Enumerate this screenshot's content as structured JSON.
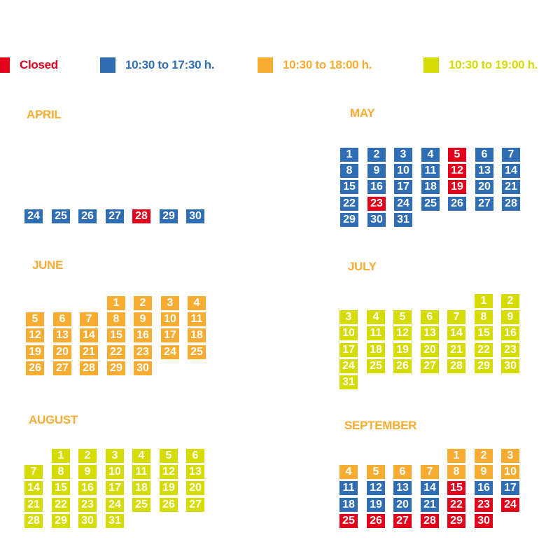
{
  "colors": {
    "closed": "#e3001b",
    "blue": "#2f6db5",
    "orange": "#f9ac32",
    "lime": "#d6dc00"
  },
  "legend": [
    {
      "key": "closed",
      "label": "Closed"
    },
    {
      "key": "blue",
      "label": "10:30 to 17:30 h."
    },
    {
      "key": "orange",
      "label": "10:30 to 18:00 h."
    },
    {
      "key": "lime",
      "label": "10:30 to 19:00 h."
    }
  ],
  "months": [
    {
      "name": "APRIL",
      "start_weekday": 0,
      "days": [
        {
          "d": 24,
          "s": "blue"
        },
        {
          "d": 25,
          "s": "blue"
        },
        {
          "d": 26,
          "s": "blue"
        },
        {
          "d": 27,
          "s": "blue"
        },
        {
          "d": 28,
          "s": "closed"
        },
        {
          "d": 29,
          "s": "blue"
        },
        {
          "d": 30,
          "s": "blue"
        }
      ]
    },
    {
      "name": "MAY",
      "start_weekday": 0,
      "days": [
        {
          "d": 1,
          "s": "blue"
        },
        {
          "d": 2,
          "s": "blue"
        },
        {
          "d": 3,
          "s": "blue"
        },
        {
          "d": 4,
          "s": "blue"
        },
        {
          "d": 5,
          "s": "closed"
        },
        {
          "d": 6,
          "s": "blue"
        },
        {
          "d": 7,
          "s": "blue"
        },
        {
          "d": 8,
          "s": "blue"
        },
        {
          "d": 9,
          "s": "blue"
        },
        {
          "d": 10,
          "s": "blue"
        },
        {
          "d": 11,
          "s": "blue"
        },
        {
          "d": 12,
          "s": "closed"
        },
        {
          "d": 13,
          "s": "blue"
        },
        {
          "d": 14,
          "s": "blue"
        },
        {
          "d": 15,
          "s": "blue"
        },
        {
          "d": 16,
          "s": "blue"
        },
        {
          "d": 17,
          "s": "blue"
        },
        {
          "d": 18,
          "s": "blue"
        },
        {
          "d": 19,
          "s": "closed"
        },
        {
          "d": 20,
          "s": "blue"
        },
        {
          "d": 21,
          "s": "blue"
        },
        {
          "d": 22,
          "s": "blue"
        },
        {
          "d": 23,
          "s": "closed"
        },
        {
          "d": 24,
          "s": "blue"
        },
        {
          "d": 25,
          "s": "blue"
        },
        {
          "d": 26,
          "s": "blue"
        },
        {
          "d": 27,
          "s": "blue"
        },
        {
          "d": 28,
          "s": "blue"
        },
        {
          "d": 29,
          "s": "blue"
        },
        {
          "d": 30,
          "s": "blue"
        },
        {
          "d": 31,
          "s": "blue"
        }
      ]
    },
    {
      "name": "JUNE",
      "start_weekday": 3,
      "days": [
        {
          "d": 1,
          "s": "orange"
        },
        {
          "d": 2,
          "s": "orange"
        },
        {
          "d": 3,
          "s": "orange"
        },
        {
          "d": 4,
          "s": "orange"
        },
        {
          "d": 5,
          "s": "orange"
        },
        {
          "d": 6,
          "s": "orange"
        },
        {
          "d": 7,
          "s": "orange"
        },
        {
          "d": 8,
          "s": "orange"
        },
        {
          "d": 9,
          "s": "orange"
        },
        {
          "d": 10,
          "s": "orange"
        },
        {
          "d": 11,
          "s": "orange"
        },
        {
          "d": 12,
          "s": "orange"
        },
        {
          "d": 13,
          "s": "orange"
        },
        {
          "d": 14,
          "s": "orange"
        },
        {
          "d": 15,
          "s": "orange"
        },
        {
          "d": 16,
          "s": "orange"
        },
        {
          "d": 17,
          "s": "orange"
        },
        {
          "d": 18,
          "s": "orange"
        },
        {
          "d": 19,
          "s": "orange"
        },
        {
          "d": 20,
          "s": "orange"
        },
        {
          "d": 21,
          "s": "orange"
        },
        {
          "d": 22,
          "s": "orange"
        },
        {
          "d": 23,
          "s": "orange"
        },
        {
          "d": 24,
          "s": "orange"
        },
        {
          "d": 25,
          "s": "orange"
        },
        {
          "d": 26,
          "s": "orange"
        },
        {
          "d": 27,
          "s": "orange"
        },
        {
          "d": 28,
          "s": "orange"
        },
        {
          "d": 29,
          "s": "orange"
        },
        {
          "d": 30,
          "s": "orange"
        }
      ]
    },
    {
      "name": "JULY",
      "start_weekday": 5,
      "days": [
        {
          "d": 1,
          "s": "lime"
        },
        {
          "d": 2,
          "s": "lime"
        },
        {
          "d": 3,
          "s": "lime"
        },
        {
          "d": 4,
          "s": "lime"
        },
        {
          "d": 5,
          "s": "lime"
        },
        {
          "d": 6,
          "s": "lime"
        },
        {
          "d": 7,
          "s": "lime"
        },
        {
          "d": 8,
          "s": "lime"
        },
        {
          "d": 9,
          "s": "lime"
        },
        {
          "d": 10,
          "s": "lime"
        },
        {
          "d": 11,
          "s": "lime"
        },
        {
          "d": 12,
          "s": "lime"
        },
        {
          "d": 13,
          "s": "lime"
        },
        {
          "d": 14,
          "s": "lime"
        },
        {
          "d": 15,
          "s": "lime"
        },
        {
          "d": 16,
          "s": "lime"
        },
        {
          "d": 17,
          "s": "lime"
        },
        {
          "d": 18,
          "s": "lime"
        },
        {
          "d": 19,
          "s": "lime"
        },
        {
          "d": 20,
          "s": "lime"
        },
        {
          "d": 21,
          "s": "lime"
        },
        {
          "d": 22,
          "s": "lime"
        },
        {
          "d": 23,
          "s": "lime"
        },
        {
          "d": 24,
          "s": "lime"
        },
        {
          "d": 25,
          "s": "lime"
        },
        {
          "d": 26,
          "s": "lime"
        },
        {
          "d": 27,
          "s": "lime"
        },
        {
          "d": 28,
          "s": "lime"
        },
        {
          "d": 29,
          "s": "lime"
        },
        {
          "d": 30,
          "s": "lime"
        },
        {
          "d": 31,
          "s": "lime"
        }
      ]
    },
    {
      "name": "AUGUST",
      "start_weekday": 1,
      "days": [
        {
          "d": 1,
          "s": "lime"
        },
        {
          "d": 2,
          "s": "lime"
        },
        {
          "d": 3,
          "s": "lime"
        },
        {
          "d": 4,
          "s": "lime"
        },
        {
          "d": 5,
          "s": "lime"
        },
        {
          "d": 6,
          "s": "lime"
        },
        {
          "d": 7,
          "s": "lime"
        },
        {
          "d": 8,
          "s": "lime"
        },
        {
          "d": 9,
          "s": "lime"
        },
        {
          "d": 10,
          "s": "lime"
        },
        {
          "d": 11,
          "s": "lime"
        },
        {
          "d": 12,
          "s": "lime"
        },
        {
          "d": 13,
          "s": "lime"
        },
        {
          "d": 14,
          "s": "lime"
        },
        {
          "d": 15,
          "s": "lime"
        },
        {
          "d": 16,
          "s": "lime"
        },
        {
          "d": 17,
          "s": "lime"
        },
        {
          "d": 18,
          "s": "lime"
        },
        {
          "d": 19,
          "s": "lime"
        },
        {
          "d": 20,
          "s": "lime"
        },
        {
          "d": 21,
          "s": "lime"
        },
        {
          "d": 22,
          "s": "lime"
        },
        {
          "d": 23,
          "s": "lime"
        },
        {
          "d": 24,
          "s": "lime"
        },
        {
          "d": 25,
          "s": "lime"
        },
        {
          "d": 26,
          "s": "lime"
        },
        {
          "d": 27,
          "s": "lime"
        },
        {
          "d": 28,
          "s": "lime"
        },
        {
          "d": 29,
          "s": "lime"
        },
        {
          "d": 30,
          "s": "lime"
        },
        {
          "d": 31,
          "s": "lime"
        }
      ]
    },
    {
      "name": "SEPTEMBER",
      "start_weekday": 4,
      "days": [
        {
          "d": 1,
          "s": "orange"
        },
        {
          "d": 2,
          "s": "orange"
        },
        {
          "d": 3,
          "s": "orange"
        },
        {
          "d": 4,
          "s": "orange"
        },
        {
          "d": 5,
          "s": "orange"
        },
        {
          "d": 6,
          "s": "orange"
        },
        {
          "d": 7,
          "s": "orange"
        },
        {
          "d": 8,
          "s": "orange"
        },
        {
          "d": 9,
          "s": "orange"
        },
        {
          "d": 10,
          "s": "orange"
        },
        {
          "d": 11,
          "s": "blue"
        },
        {
          "d": 12,
          "s": "blue"
        },
        {
          "d": 13,
          "s": "blue"
        },
        {
          "d": 14,
          "s": "blue"
        },
        {
          "d": 15,
          "s": "closed"
        },
        {
          "d": 16,
          "s": "blue"
        },
        {
          "d": 17,
          "s": "blue"
        },
        {
          "d": 18,
          "s": "blue"
        },
        {
          "d": 19,
          "s": "blue"
        },
        {
          "d": 20,
          "s": "blue"
        },
        {
          "d": 21,
          "s": "blue"
        },
        {
          "d": 22,
          "s": "closed"
        },
        {
          "d": 23,
          "s": "closed"
        },
        {
          "d": 24,
          "s": "closed"
        },
        {
          "d": 25,
          "s": "closed"
        },
        {
          "d": 26,
          "s": "closed"
        },
        {
          "d": 27,
          "s": "closed"
        },
        {
          "d": 28,
          "s": "closed"
        },
        {
          "d": 29,
          "s": "closed"
        },
        {
          "d": 30,
          "s": "closed"
        }
      ]
    }
  ]
}
